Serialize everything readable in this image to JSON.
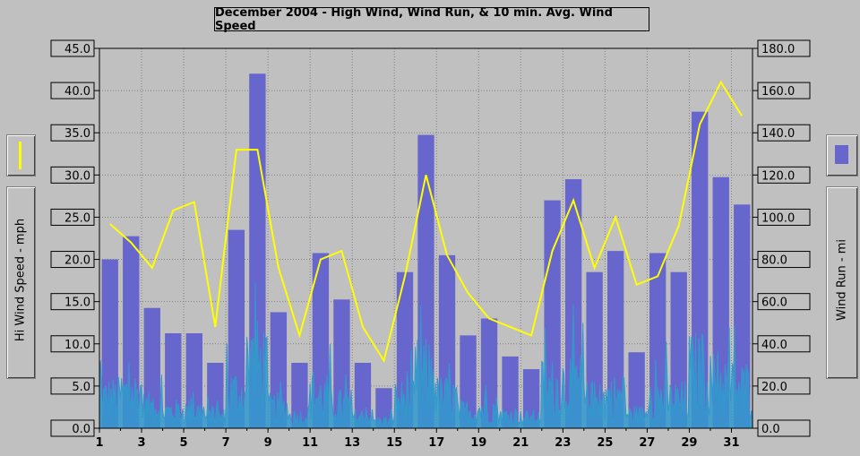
{
  "chart_data": {
    "type": "bar",
    "title": "December 2004 - High Wind, Wind Run, & 10 min. Avg. Wind Speed",
    "y_left_label": "Hi Wind Speed - mph",
    "y_right_label": "Wind Run - mi",
    "y_left_ticks": [
      "45.0",
      "40.0",
      "35.0",
      "30.0",
      "25.0",
      "20.0",
      "15.0",
      "10.0",
      "5.0",
      "0.0"
    ],
    "y_right_ticks": [
      "180.0",
      "160.0",
      "140.0",
      "120.0",
      "100.0",
      "80.0",
      "60.0",
      "40.0",
      "20.0",
      "0.0"
    ],
    "x_ticks": [
      "1",
      "3",
      "5",
      "7",
      "9",
      "11",
      "13",
      "15",
      "17",
      "19",
      "21",
      "23",
      "25",
      "27",
      "29",
      "31"
    ],
    "ylim_left": [
      0,
      45
    ],
    "ylim_right": [
      0,
      180
    ],
    "days": [
      1,
      2,
      3,
      4,
      5,
      6,
      7,
      8,
      9,
      10,
      11,
      12,
      13,
      14,
      15,
      16,
      17,
      18,
      19,
      20,
      21,
      22,
      23,
      24,
      25,
      26,
      27,
      28,
      29,
      30,
      31
    ],
    "series": [
      {
        "name": "Wind Run",
        "axis": "right",
        "color": "#6666cc",
        "values": [
          80,
          91,
          57,
          45,
          45,
          31,
          94,
          168,
          55,
          31,
          83,
          61,
          31,
          19,
          74,
          139,
          82,
          44,
          52,
          34,
          28,
          108,
          118,
          74,
          84,
          36,
          83,
          74,
          150,
          119,
          106
        ]
      },
      {
        "name": "Hi Wind Speed",
        "axis": "left",
        "color": "#ffff00",
        "values": [
          24.2,
          22.0,
          19.0,
          25.8,
          26.8,
          12.0,
          33.0,
          33.0,
          19.0,
          11.0,
          20.0,
          21.0,
          12.0,
          8.0,
          18.0,
          30.0,
          20.5,
          16.0,
          13.0,
          12.0,
          11.0,
          21.0,
          27.0,
          19.0,
          25.0,
          17.0,
          18.0,
          24.0,
          36.0,
          41.0,
          37.0
        ]
      },
      {
        "name": "10 min. Avg. Wind Speed",
        "axis": "left",
        "color": "#3399cc"
      }
    ]
  }
}
